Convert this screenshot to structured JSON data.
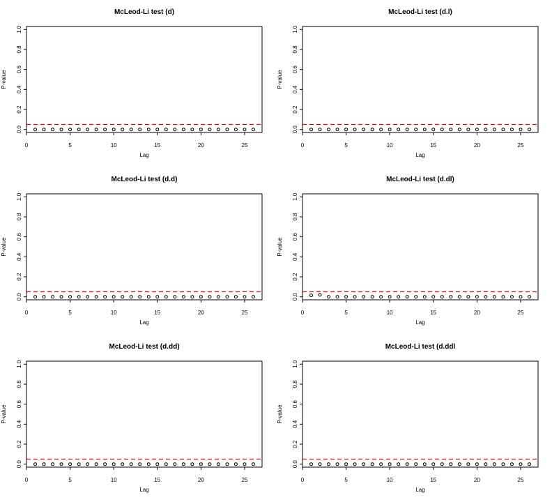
{
  "chart_data": [
    {
      "type": "scatter",
      "title": "McLeod-Li test (d)",
      "xlabel": "Lag",
      "ylabel": "P-value",
      "xlim": [
        0,
        27
      ],
      "ylim": [
        -0.03,
        1.03
      ],
      "xticks": [
        0,
        5,
        10,
        15,
        20,
        25
      ],
      "yticks": [
        0.0,
        0.2,
        0.4,
        0.6,
        0.8,
        1.0
      ],
      "ytick_labels": [
        "0.0",
        "0.2",
        "0.4",
        "0.6",
        "0.8",
        "1.0"
      ],
      "x": [
        1,
        2,
        3,
        4,
        5,
        6,
        7,
        8,
        9,
        10,
        11,
        12,
        13,
        14,
        15,
        16,
        17,
        18,
        19,
        20,
        21,
        22,
        23,
        24,
        25,
        26
      ],
      "y": [
        0,
        0,
        0,
        0,
        0,
        0,
        0,
        0,
        0,
        0,
        0,
        0,
        0,
        0,
        0,
        0,
        0,
        0,
        0,
        0,
        0,
        0,
        0,
        0,
        0,
        0
      ],
      "reference_line": {
        "y": 0.05,
        "style": "dashed",
        "color": "#e00000"
      },
      "grid": false
    },
    {
      "type": "scatter",
      "title": "McLeod-Li test (d.l)",
      "xlabel": "Lag",
      "ylabel": "P-value",
      "xlim": [
        0,
        27
      ],
      "ylim": [
        -0.03,
        1.03
      ],
      "xticks": [
        0,
        5,
        10,
        15,
        20,
        25
      ],
      "yticks": [
        0.0,
        0.2,
        0.4,
        0.6,
        0.8,
        1.0
      ],
      "ytick_labels": [
        "0.0",
        "0.2",
        "0.4",
        "0.6",
        "0.8",
        "1.0"
      ],
      "x": [
        1,
        2,
        3,
        4,
        5,
        6,
        7,
        8,
        9,
        10,
        11,
        12,
        13,
        14,
        15,
        16,
        17,
        18,
        19,
        20,
        21,
        22,
        23,
        24,
        25,
        26
      ],
      "y": [
        0,
        0,
        0,
        0,
        0,
        0,
        0,
        0,
        0,
        0,
        0,
        0,
        0,
        0,
        0,
        0,
        0,
        0,
        0,
        0,
        0,
        0,
        0,
        0,
        0,
        0
      ],
      "reference_line": {
        "y": 0.05,
        "style": "dashed",
        "color": "#e00000"
      },
      "grid": false
    },
    {
      "type": "scatter",
      "title": "McLeod-Li test (d.d)",
      "xlabel": "Lag",
      "ylabel": "P-value",
      "xlim": [
        0,
        27
      ],
      "ylim": [
        -0.03,
        1.03
      ],
      "xticks": [
        0,
        5,
        10,
        15,
        20,
        25
      ],
      "yticks": [
        0.0,
        0.2,
        0.4,
        0.6,
        0.8,
        1.0
      ],
      "ytick_labels": [
        "0.0",
        "0.2",
        "0.4",
        "0.6",
        "0.8",
        "1.0"
      ],
      "x": [
        1,
        2,
        3,
        4,
        5,
        6,
        7,
        8,
        9,
        10,
        11,
        12,
        13,
        14,
        15,
        16,
        17,
        18,
        19,
        20,
        21,
        22,
        23,
        24,
        25,
        26
      ],
      "y": [
        0,
        0,
        0,
        0,
        0,
        0,
        0,
        0,
        0,
        0,
        0,
        0,
        0,
        0,
        0,
        0,
        0,
        0,
        0,
        0,
        0,
        0,
        0,
        0,
        0,
        0
      ],
      "reference_line": {
        "y": 0.05,
        "style": "dashed",
        "color": "#e00000"
      },
      "grid": false
    },
    {
      "type": "scatter",
      "title": "McLeod-Li test (d.dl)",
      "xlabel": "Lag",
      "ylabel": "P-value",
      "xlim": [
        0,
        27
      ],
      "ylim": [
        -0.03,
        1.03
      ],
      "xticks": [
        0,
        5,
        10,
        15,
        20,
        25
      ],
      "yticks": [
        0.0,
        0.2,
        0.4,
        0.6,
        0.8,
        1.0
      ],
      "ytick_labels": [
        "0.0",
        "0.2",
        "0.4",
        "0.6",
        "0.8",
        "1.0"
      ],
      "x": [
        1,
        2,
        3,
        4,
        5,
        6,
        7,
        8,
        9,
        10,
        11,
        12,
        13,
        14,
        15,
        16,
        17,
        18,
        19,
        20,
        21,
        22,
        23,
        24,
        25,
        26
      ],
      "y": [
        0.015,
        0.02,
        0,
        0,
        0,
        0,
        0,
        0,
        0,
        0,
        0,
        0,
        0,
        0,
        0,
        0,
        0,
        0,
        0,
        0,
        0,
        0,
        0,
        0,
        0,
        0
      ],
      "reference_line": {
        "y": 0.05,
        "style": "dashed",
        "color": "#e00000"
      },
      "grid": false
    },
    {
      "type": "scatter",
      "title": "McLeod-Li test (d.dd)",
      "xlabel": "Lag",
      "ylabel": "P-value",
      "xlim": [
        0,
        27
      ],
      "ylim": [
        -0.03,
        1.03
      ],
      "xticks": [
        0,
        5,
        10,
        15,
        20,
        25
      ],
      "yticks": [
        0.0,
        0.2,
        0.4,
        0.6,
        0.8,
        1.0
      ],
      "ytick_labels": [
        "0.0",
        "0.2",
        "0.4",
        "0.6",
        "0.8",
        "1.0"
      ],
      "x": [
        1,
        2,
        3,
        4,
        5,
        6,
        7,
        8,
        9,
        10,
        11,
        12,
        13,
        14,
        15,
        16,
        17,
        18,
        19,
        20,
        21,
        22,
        23,
        24,
        25,
        26
      ],
      "y": [
        0,
        0,
        0,
        0,
        0,
        0,
        0,
        0,
        0,
        0,
        0,
        0,
        0,
        0,
        0,
        0,
        0,
        0,
        0,
        0,
        0,
        0,
        0,
        0,
        0,
        0
      ],
      "reference_line": {
        "y": 0.05,
        "style": "dashed",
        "color": "#e00000"
      },
      "grid": false
    },
    {
      "type": "scatter",
      "title": "McLeod-Li test (d.ddl",
      "xlabel": "Lag",
      "ylabel": "P-value",
      "xlim": [
        0,
        27
      ],
      "ylim": [
        -0.03,
        1.03
      ],
      "xticks": [
        0,
        5,
        10,
        15,
        20,
        25
      ],
      "yticks": [
        0.0,
        0.2,
        0.4,
        0.6,
        0.8,
        1.0
      ],
      "ytick_labels": [
        "0.0",
        "0.2",
        "0.4",
        "0.6",
        "0.8",
        "1.0"
      ],
      "x": [
        1,
        2,
        3,
        4,
        5,
        6,
        7,
        8,
        9,
        10,
        11,
        12,
        13,
        14,
        15,
        16,
        17,
        18,
        19,
        20,
        21,
        22,
        23,
        24,
        25,
        26
      ],
      "y": [
        0,
        0,
        0,
        0,
        0,
        0,
        0,
        0,
        0,
        0,
        0,
        0,
        0,
        0,
        0,
        0,
        0,
        0,
        0,
        0,
        0,
        0,
        0,
        0,
        0,
        0
      ],
      "reference_line": {
        "y": 0.05,
        "style": "dashed",
        "color": "#e00000"
      },
      "grid": false
    }
  ]
}
